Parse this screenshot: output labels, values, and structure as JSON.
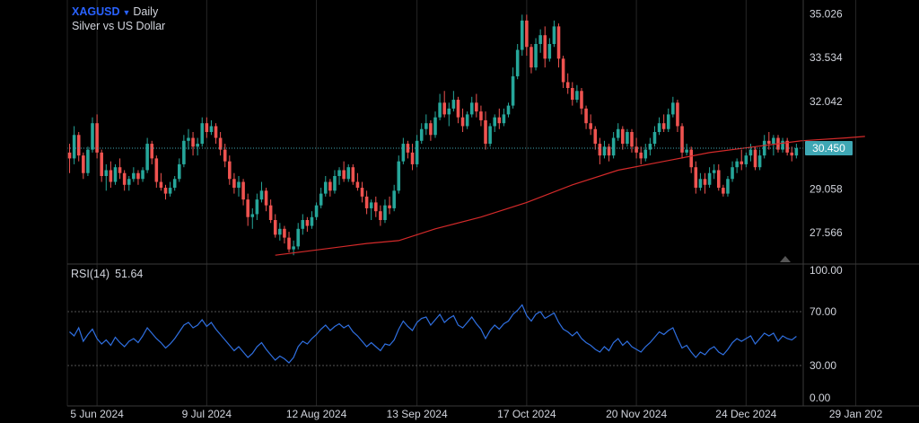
{
  "header": {
    "symbol": "XAGUSD",
    "timeframe": "Daily",
    "description": "Silver vs US Dollar"
  },
  "rsi": {
    "label": "RSI(14)",
    "value": "51.64"
  },
  "colors": {
    "up": "#26a69a",
    "down": "#ef5350",
    "ma": "#d42a2a",
    "rsi_line": "#2f6fe0",
    "price_line": "#3fa7b4",
    "grid": "#262626",
    "text": "#d1d4dc",
    "background": "#000000"
  },
  "chart_data": [
    {
      "type": "candlestick",
      "title": "XAGUSD Daily",
      "ylim": [
        26.5,
        35.5
      ],
      "y_ticks": [
        "35.026",
        "33.534",
        "32.042",
        "30.450",
        "29.058",
        "27.566"
      ],
      "y_tick_values": [
        35.026,
        33.534,
        32.042,
        30.45,
        29.058,
        27.566
      ],
      "current_price": "30.450",
      "current_price_value": 30.45,
      "x_ticks": [
        "5 Jun 2024",
        "9 Jul 2024",
        "12 Aug 2024",
        "13 Sep 2024",
        "17 Oct 2024",
        "20 Nov 2024",
        "24 Dec 2024",
        "29 Jan 202"
      ],
      "x_tick_index": [
        6,
        30,
        54,
        76,
        100,
        124,
        148,
        172
      ],
      "ohlc": [
        [
          30.3,
          30.6,
          29.6,
          30.1
        ],
        [
          30.1,
          31.2,
          29.9,
          30.9
        ],
        [
          30.9,
          31.0,
          30.0,
          30.2
        ],
        [
          30.2,
          30.3,
          29.4,
          29.6
        ],
        [
          29.6,
          30.5,
          29.5,
          30.4
        ],
        [
          30.4,
          31.5,
          30.3,
          31.3
        ],
        [
          31.3,
          31.6,
          30.1,
          30.3
        ],
        [
          30.3,
          30.4,
          29.3,
          29.5
        ],
        [
          29.5,
          29.9,
          29.0,
          29.7
        ],
        [
          29.7,
          30.0,
          29.1,
          29.3
        ],
        [
          29.3,
          29.9,
          29.2,
          29.8
        ],
        [
          29.8,
          30.1,
          29.4,
          29.6
        ],
        [
          29.6,
          29.7,
          29.0,
          29.2
        ],
        [
          29.2,
          29.5,
          29.0,
          29.4
        ],
        [
          29.4,
          29.8,
          29.3,
          29.6
        ],
        [
          29.6,
          29.7,
          29.2,
          29.4
        ],
        [
          29.4,
          29.8,
          29.3,
          29.7
        ],
        [
          29.7,
          30.8,
          29.6,
          30.6
        ],
        [
          30.6,
          30.7,
          29.9,
          30.1
        ],
        [
          30.1,
          30.2,
          29.1,
          29.3
        ],
        [
          29.3,
          29.6,
          29.0,
          29.1
        ],
        [
          29.1,
          29.2,
          28.7,
          28.9
        ],
        [
          28.9,
          29.3,
          28.8,
          29.1
        ],
        [
          29.1,
          29.5,
          29.0,
          29.4
        ],
        [
          29.4,
          30.1,
          29.3,
          29.9
        ],
        [
          29.9,
          30.9,
          29.8,
          30.7
        ],
        [
          30.7,
          31.1,
          30.4,
          30.8
        ],
        [
          30.8,
          31.0,
          30.2,
          30.5
        ],
        [
          30.5,
          30.8,
          30.2,
          30.6
        ],
        [
          30.6,
          31.5,
          30.5,
          31.3
        ],
        [
          31.3,
          31.5,
          30.8,
          31.0
        ],
        [
          31.0,
          31.4,
          30.9,
          31.2
        ],
        [
          31.2,
          31.3,
          30.6,
          30.8
        ],
        [
          30.8,
          31.0,
          30.2,
          30.4
        ],
        [
          30.4,
          30.6,
          29.8,
          30.0
        ],
        [
          30.0,
          30.2,
          29.2,
          29.4
        ],
        [
          29.4,
          29.6,
          28.9,
          29.1
        ],
        [
          29.1,
          29.5,
          28.8,
          29.3
        ],
        [
          29.3,
          29.4,
          28.5,
          28.7
        ],
        [
          28.7,
          28.9,
          27.8,
          28.1
        ],
        [
          28.1,
          28.4,
          27.7,
          28.2
        ],
        [
          28.2,
          28.9,
          28.0,
          28.7
        ],
        [
          28.7,
          29.3,
          28.6,
          29.0
        ],
        [
          29.0,
          29.1,
          28.3,
          28.5
        ],
        [
          28.5,
          28.7,
          27.9,
          28.0
        ],
        [
          28.0,
          28.2,
          27.4,
          27.5
        ],
        [
          27.5,
          27.9,
          27.3,
          27.7
        ],
        [
          27.7,
          27.8,
          27.2,
          27.4
        ],
        [
          27.4,
          27.6,
          26.9,
          27.0
        ],
        [
          27.0,
          27.3,
          26.8,
          27.1
        ],
        [
          27.1,
          27.9,
          27.0,
          27.7
        ],
        [
          27.7,
          28.2,
          27.5,
          28.0
        ],
        [
          28.0,
          28.1,
          27.6,
          27.8
        ],
        [
          27.8,
          28.3,
          27.7,
          28.1
        ],
        [
          28.1,
          28.6,
          28.0,
          28.5
        ],
        [
          28.5,
          29.1,
          28.4,
          28.9
        ],
        [
          28.9,
          29.5,
          28.8,
          29.3
        ],
        [
          29.3,
          29.4,
          28.8,
          29.0
        ],
        [
          29.0,
          29.7,
          28.9,
          29.5
        ],
        [
          29.5,
          29.8,
          29.2,
          29.7
        ],
        [
          29.7,
          30.0,
          29.3,
          29.4
        ],
        [
          29.4,
          29.9,
          29.3,
          29.8
        ],
        [
          29.8,
          29.9,
          29.2,
          29.3
        ],
        [
          29.3,
          29.6,
          29.0,
          29.1
        ],
        [
          29.1,
          29.3,
          28.6,
          28.8
        ],
        [
          28.8,
          29.0,
          28.2,
          28.4
        ],
        [
          28.4,
          28.7,
          28.0,
          28.6
        ],
        [
          28.6,
          28.8,
          28.1,
          28.3
        ],
        [
          28.3,
          28.5,
          27.8,
          28.0
        ],
        [
          28.0,
          28.7,
          27.9,
          28.5
        ],
        [
          28.5,
          28.8,
          28.2,
          28.4
        ],
        [
          28.4,
          29.2,
          28.3,
          29.0
        ],
        [
          29.0,
          30.2,
          28.9,
          30.0
        ],
        [
          30.0,
          30.8,
          29.9,
          30.6
        ],
        [
          30.6,
          30.7,
          30.1,
          30.3
        ],
        [
          30.3,
          30.6,
          29.7,
          29.9
        ],
        [
          29.9,
          30.9,
          29.8,
          30.7
        ],
        [
          30.7,
          31.3,
          30.6,
          31.1
        ],
        [
          31.1,
          31.6,
          30.9,
          31.3
        ],
        [
          31.3,
          31.4,
          30.7,
          30.9
        ],
        [
          30.9,
          31.7,
          30.8,
          31.5
        ],
        [
          31.5,
          32.3,
          31.4,
          32.0
        ],
        [
          32.0,
          32.4,
          31.5,
          31.6
        ],
        [
          31.6,
          32.0,
          31.2,
          31.8
        ],
        [
          31.8,
          32.4,
          31.7,
          32.1
        ],
        [
          32.1,
          32.2,
          31.3,
          31.5
        ],
        [
          31.5,
          31.8,
          31.0,
          31.2
        ],
        [
          31.2,
          31.7,
          31.1,
          31.6
        ],
        [
          31.6,
          32.2,
          31.5,
          32.0
        ],
        [
          32.0,
          32.3,
          31.5,
          31.7
        ],
        [
          31.7,
          31.9,
          31.2,
          31.4
        ],
        [
          31.4,
          31.7,
          30.4,
          30.6
        ],
        [
          30.6,
          31.3,
          30.5,
          31.2
        ],
        [
          31.2,
          31.6,
          31.0,
          31.5
        ],
        [
          31.5,
          31.8,
          31.1,
          31.3
        ],
        [
          31.3,
          31.8,
          31.2,
          31.6
        ],
        [
          31.6,
          32.0,
          31.5,
          31.9
        ],
        [
          31.9,
          33.2,
          31.8,
          32.9
        ],
        [
          32.9,
          34.0,
          32.8,
          33.8
        ],
        [
          33.8,
          35.0,
          33.6,
          34.8
        ],
        [
          34.8,
          35.0,
          33.6,
          33.9
        ],
        [
          33.9,
          34.0,
          33.0,
          33.2
        ],
        [
          33.2,
          34.2,
          33.1,
          34.0
        ],
        [
          34.0,
          34.5,
          33.7,
          34.3
        ],
        [
          34.3,
          34.6,
          33.2,
          33.5
        ],
        [
          33.5,
          34.2,
          33.4,
          34.0
        ],
        [
          34.0,
          34.8,
          33.9,
          34.6
        ],
        [
          34.6,
          34.7,
          33.2,
          33.5
        ],
        [
          33.5,
          33.6,
          32.5,
          32.7
        ],
        [
          32.7,
          33.0,
          32.3,
          32.5
        ],
        [
          32.5,
          32.7,
          31.9,
          32.1
        ],
        [
          32.1,
          32.6,
          32.0,
          32.4
        ],
        [
          32.4,
          32.5,
          31.6,
          31.8
        ],
        [
          31.8,
          31.9,
          31.1,
          31.3
        ],
        [
          31.3,
          31.6,
          30.9,
          31.1
        ],
        [
          31.1,
          31.2,
          30.4,
          30.6
        ],
        [
          30.6,
          30.8,
          29.9,
          30.2
        ],
        [
          30.2,
          30.7,
          30.1,
          30.5
        ],
        [
          30.5,
          30.6,
          30.0,
          30.2
        ],
        [
          30.2,
          31.0,
          30.1,
          30.8
        ],
        [
          30.8,
          31.3,
          30.7,
          31.1
        ],
        [
          31.1,
          31.2,
          30.4,
          30.6
        ],
        [
          30.6,
          31.1,
          30.5,
          31.0
        ],
        [
          31.0,
          31.1,
          30.3,
          30.5
        ],
        [
          30.5,
          30.8,
          30.1,
          30.3
        ],
        [
          30.3,
          30.5,
          29.9,
          30.1
        ],
        [
          30.1,
          30.6,
          30.0,
          30.4
        ],
        [
          30.4,
          30.8,
          30.2,
          30.6
        ],
        [
          30.6,
          31.2,
          30.5,
          31.0
        ],
        [
          31.0,
          31.5,
          30.9,
          31.3
        ],
        [
          31.3,
          31.6,
          31.0,
          31.1
        ],
        [
          31.1,
          31.8,
          31.0,
          31.6
        ],
        [
          31.6,
          32.2,
          31.5,
          32.0
        ],
        [
          32.0,
          32.1,
          31.0,
          31.2
        ],
        [
          31.2,
          31.3,
          30.1,
          30.3
        ],
        [
          30.3,
          30.6,
          30.2,
          30.4
        ],
        [
          30.4,
          30.5,
          29.6,
          29.8
        ],
        [
          29.8,
          30.0,
          28.9,
          29.1
        ],
        [
          29.1,
          29.6,
          29.0,
          29.4
        ],
        [
          29.4,
          29.6,
          28.9,
          29.2
        ],
        [
          29.2,
          29.8,
          29.1,
          29.6
        ],
        [
          29.6,
          29.9,
          29.4,
          29.7
        ],
        [
          29.7,
          29.9,
          29.0,
          29.1
        ],
        [
          29.1,
          29.2,
          28.8,
          28.9
        ],
        [
          28.9,
          29.5,
          28.8,
          29.4
        ],
        [
          29.4,
          30.0,
          29.3,
          29.8
        ],
        [
          29.8,
          30.1,
          29.6,
          30.0
        ],
        [
          30.0,
          30.4,
          29.7,
          29.9
        ],
        [
          29.9,
          30.3,
          29.8,
          30.2
        ],
        [
          30.2,
          30.6,
          30.0,
          30.4
        ],
        [
          30.4,
          30.5,
          29.7,
          29.8
        ],
        [
          29.8,
          30.4,
          29.7,
          30.2
        ],
        [
          30.2,
          30.9,
          30.1,
          30.7
        ],
        [
          30.7,
          31.0,
          30.4,
          30.6
        ],
        [
          30.6,
          30.9,
          30.2,
          30.8
        ],
        [
          30.8,
          30.9,
          30.3,
          30.4
        ],
        [
          30.4,
          30.8,
          30.3,
          30.7
        ],
        [
          30.7,
          30.8,
          30.2,
          30.3
        ],
        [
          30.3,
          30.5,
          30.0,
          30.2
        ],
        [
          30.2,
          30.6,
          30.1,
          30.45
        ]
      ],
      "ma": [
        [
          45,
          26.8
        ],
        [
          55,
          27.0
        ],
        [
          65,
          27.2
        ],
        [
          72,
          27.3
        ],
        [
          80,
          27.7
        ],
        [
          90,
          28.1
        ],
        [
          100,
          28.6
        ],
        [
          110,
          29.2
        ],
        [
          120,
          29.7
        ],
        [
          130,
          30.0
        ],
        [
          140,
          30.3
        ],
        [
          150,
          30.5
        ],
        [
          160,
          30.7
        ],
        [
          170,
          30.8
        ],
        [
          174,
          30.85
        ]
      ]
    },
    {
      "type": "line",
      "title": "RSI(14) 51.64",
      "ylim": [
        0,
        100
      ],
      "y_ticks": [
        "100.00",
        "70.00",
        "30.00",
        "0.00"
      ],
      "y_tick_values": [
        100,
        70,
        30,
        0
      ],
      "values": [
        55,
        52,
        58,
        48,
        53,
        57,
        50,
        46,
        49,
        45,
        51,
        47,
        44,
        48,
        50,
        47,
        52,
        58,
        54,
        50,
        47,
        43,
        46,
        50,
        55,
        60,
        62,
        58,
        60,
        64,
        59,
        62,
        57,
        53,
        49,
        45,
        41,
        44,
        40,
        36,
        39,
        44,
        47,
        42,
        38,
        34,
        37,
        35,
        32,
        36,
        44,
        48,
        46,
        50,
        53,
        57,
        60,
        56,
        59,
        61,
        58,
        60,
        55,
        52,
        48,
        44,
        47,
        44,
        41,
        46,
        45,
        49,
        57,
        63,
        59,
        56,
        62,
        65,
        66,
        60,
        64,
        68,
        62,
        65,
        67,
        60,
        58,
        62,
        66,
        61,
        57,
        50,
        56,
        60,
        57,
        61,
        63,
        68,
        71,
        75,
        67,
        63,
        68,
        70,
        65,
        67,
        69,
        62,
        57,
        55,
        52,
        55,
        50,
        47,
        45,
        42,
        40,
        44,
        41,
        47,
        50,
        45,
        48,
        44,
        42,
        40,
        44,
        47,
        51,
        55,
        53,
        56,
        58,
        50,
        43,
        45,
        40,
        36,
        40,
        38,
        42,
        44,
        40,
        38,
        42,
        47,
        50,
        48,
        50,
        52,
        46,
        50,
        54,
        52,
        54,
        48,
        52,
        50,
        49,
        51.64
      ]
    }
  ]
}
